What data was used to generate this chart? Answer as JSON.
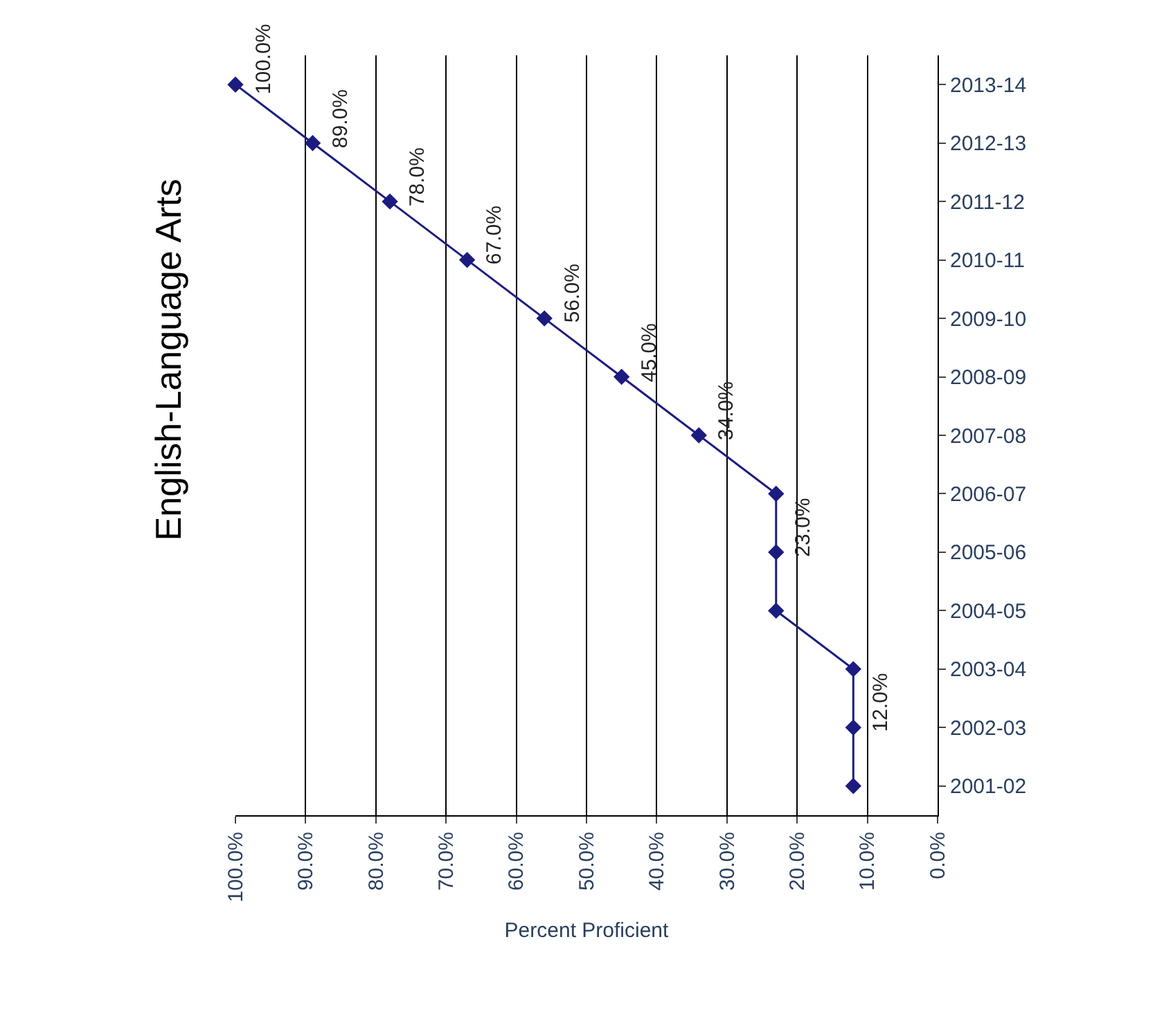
{
  "chart_data": {
    "type": "line",
    "orientation": "horizontal",
    "title": "English-Language Arts",
    "xlabel": "Percent Proficient",
    "categories": [
      "2013-14",
      "2012-13",
      "2011-12",
      "2010-11",
      "2009-10",
      "2008-09",
      "2007-08",
      "2006-07",
      "2005-06",
      "2004-05",
      "2003-04",
      "2002-03",
      "2001-02"
    ],
    "series": [
      {
        "color": "#1c1c80",
        "values": [
          100,
          89,
          78,
          67,
          56,
          45,
          34,
          23,
          23,
          23,
          12,
          12,
          12
        ],
        "value_labels": [
          "100.0%",
          "89.0%",
          "78.0%",
          "67.0%",
          "56.0%",
          "45.0%",
          "34.0%",
          null,
          "23.0%",
          null,
          null,
          "12.0%",
          null
        ]
      }
    ],
    "xlim": [
      100,
      0
    ],
    "xticks": [
      {
        "value": 100,
        "label": "100.0%"
      },
      {
        "value": 90,
        "label": "90.0%"
      },
      {
        "value": 80,
        "label": "80.0%"
      },
      {
        "value": 70,
        "label": "70.0%"
      },
      {
        "value": 60,
        "label": "60.0%"
      },
      {
        "value": 50,
        "label": "50.0%"
      },
      {
        "value": 40,
        "label": "40.0%"
      },
      {
        "value": 30,
        "label": "30.0%"
      },
      {
        "value": 20,
        "label": "20.0%"
      },
      {
        "value": 10,
        "label": "10.0%"
      },
      {
        "value": 0,
        "label": "0.0%"
      }
    ],
    "grid": "x",
    "legend": false,
    "marker": "diamond",
    "line_style": "solid"
  }
}
